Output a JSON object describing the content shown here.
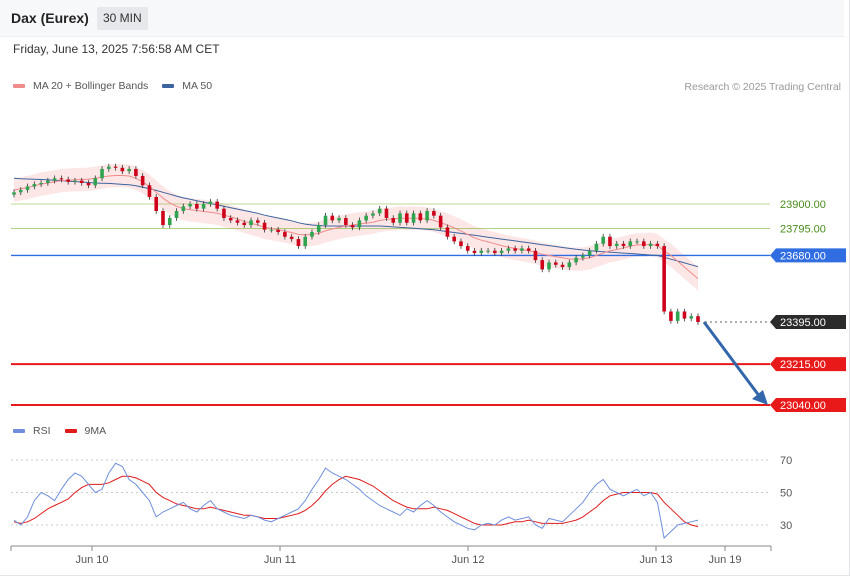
{
  "header": {
    "title": "Dax (Eurex)",
    "timeframe": "30 MIN",
    "datetime": "Friday, June 13, 2025 7:56:58 AM CET",
    "copyright": "Research © 2025 Trading Central"
  },
  "legend": {
    "price": [
      {
        "label": "MA 20 + Bollinger Bands",
        "color": "#f08c8c"
      },
      {
        "label": "MA 50",
        "color": "#3c64a0"
      }
    ],
    "rsi": [
      {
        "label": "RSI",
        "color": "#6f8fdc"
      },
      {
        "label": "9MA",
        "color": "#e01b1b"
      }
    ]
  },
  "chart_data": {
    "type": "candlestick",
    "x_ticks": [
      "Jun 10",
      "Jun 11",
      "Jun 12",
      "Jun 13",
      "Jun 19"
    ],
    "levels": [
      {
        "value": 23900.0,
        "label": "23900.00",
        "kind": "resistance-soft",
        "color": "#8fbf4e"
      },
      {
        "value": 23795.0,
        "label": "23795.00",
        "kind": "resistance-soft",
        "color": "#8fbf4e"
      },
      {
        "value": 23680.0,
        "label": "23680.00",
        "kind": "pivot",
        "color": "#2f6de1"
      },
      {
        "value": 23395.0,
        "label": "23395.00",
        "kind": "last-price",
        "color": "#2b2b2b"
      },
      {
        "value": 23215.0,
        "label": "23215.00",
        "kind": "support",
        "color": "#e81919"
      },
      {
        "value": 23040.0,
        "label": "23040.00",
        "kind": "support",
        "color": "#e81919"
      }
    ],
    "price_close": [
      23950,
      23960,
      23975,
      23985,
      23990,
      24000,
      24010,
      24005,
      23995,
      24000,
      23990,
      23980,
      24010,
      24050,
      24060,
      24055,
      24040,
      24050,
      24020,
      23980,
      23930,
      23870,
      23810,
      23840,
      23870,
      23890,
      23900,
      23880,
      23900,
      23910,
      23880,
      23840,
      23830,
      23820,
      23810,
      23830,
      23820,
      23790,
      23790,
      23780,
      23760,
      23750,
      23720,
      23760,
      23780,
      23810,
      23850,
      23830,
      23840,
      23810,
      23800,
      23830,
      23850,
      23860,
      23880,
      23840,
      23820,
      23860,
      23820,
      23860,
      23830,
      23870,
      23850,
      23800,
      23760,
      23740,
      23720,
      23700,
      23690,
      23700,
      23700,
      23690,
      23700,
      23710,
      23700,
      23710,
      23700,
      23660,
      23620,
      23650,
      23640,
      23630,
      23650,
      23670,
      23680,
      23700,
      23730,
      23760,
      23720,
      23730,
      23720,
      23740,
      23740,
      23720,
      23730,
      23720,
      23440,
      23400,
      23440,
      23410,
      23420,
      23395
    ],
    "ma20": [
      23960,
      23965,
      23970,
      23978,
      23985,
      23990,
      23995,
      24000,
      24002,
      24004,
      24005,
      24006,
      24010,
      24015,
      24020,
      24022,
      24022,
      24020,
      24010,
      23995,
      23975,
      23950,
      23925,
      23905,
      23890,
      23880,
      23875,
      23872,
      23868,
      23865,
      23860,
      23852,
      23845,
      23836,
      23826,
      23818,
      23810,
      23800,
      23795,
      23790,
      23784,
      23778,
      23770,
      23768,
      23770,
      23775,
      23785,
      23793,
      23800,
      23806,
      23810,
      23815,
      23818,
      23822,
      23830,
      23834,
      23836,
      23840,
      23838,
      23840,
      23838,
      23836,
      23830,
      23820,
      23810,
      23798,
      23785,
      23770,
      23755,
      23745,
      23738,
      23730,
      23722,
      23715,
      23710,
      23705,
      23700,
      23693,
      23685,
      23680,
      23674,
      23670,
      23665,
      23664,
      23665,
      23670,
      23680,
      23690,
      23700,
      23705,
      23712,
      23720,
      23725,
      23725,
      23728,
      23722,
      23700,
      23680,
      23655,
      23630,
      23605,
      23580
    ],
    "ma50": [
      24010,
      24008,
      24007,
      24006,
      24005,
      24003,
      24002,
      24000,
      23998,
      23996,
      23994,
      23992,
      23990,
      23989,
      23988,
      23986,
      23984,
      23982,
      23978,
      23972,
      23966,
      23958,
      23950,
      23942,
      23934,
      23926,
      23920,
      23914,
      23908,
      23902,
      23896,
      23890,
      23884,
      23878,
      23872,
      23866,
      23860,
      23852,
      23846,
      23840,
      23834,
      23828,
      23820,
      23814,
      23810,
      23808,
      23806,
      23806,
      23806,
      23806,
      23806,
      23806,
      23806,
      23806,
      23806,
      23804,
      23802,
      23800,
      23798,
      23796,
      23794,
      23792,
      23790,
      23786,
      23782,
      23778,
      23774,
      23770,
      23766,
      23762,
      23758,
      23754,
      23750,
      23746,
      23742,
      23738,
      23734,
      23730,
      23726,
      23722,
      23718,
      23714,
      23710,
      23706,
      23703,
      23700,
      23698,
      23696,
      23694,
      23692,
      23690,
      23688,
      23686,
      23684,
      23682,
      23680,
      23672,
      23664,
      23656,
      23648,
      23640,
      23632
    ],
    "bb_half_width": 50,
    "rsi": [
      33,
      30,
      35,
      45,
      50,
      48,
      45,
      52,
      58,
      62,
      60,
      55,
      50,
      52,
      62,
      68,
      66,
      58,
      55,
      50,
      45,
      35,
      38,
      40,
      42,
      44,
      40,
      38,
      42,
      45,
      40,
      38,
      36,
      35,
      34,
      36,
      35,
      33,
      32,
      34,
      36,
      38,
      40,
      45,
      52,
      58,
      65,
      62,
      60,
      58,
      55,
      52,
      48,
      45,
      42,
      40,
      38,
      36,
      40,
      38,
      42,
      45,
      42,
      38,
      35,
      32,
      30,
      28,
      27,
      30,
      31,
      30,
      33,
      35,
      33,
      34,
      35,
      30,
      28,
      34,
      33,
      32,
      36,
      40,
      44,
      50,
      55,
      58,
      52,
      50,
      48,
      50,
      52,
      48,
      50,
      44,
      22,
      26,
      30,
      31,
      32,
      33
    ],
    "rsi_ma": [
      32,
      31,
      32,
      34,
      37,
      40,
      42,
      44,
      46,
      50,
      53,
      55,
      55,
      55,
      56,
      58,
      60,
      60,
      59,
      57,
      55,
      50,
      47,
      45,
      43,
      42,
      41,
      40,
      40,
      41,
      40,
      39,
      38,
      37,
      36,
      36,
      35,
      34,
      34,
      34,
      35,
      36,
      37,
      39,
      42,
      46,
      51,
      55,
      58,
      60,
      59,
      58,
      56,
      54,
      51,
      48,
      45,
      43,
      41,
      40,
      40,
      40,
      41,
      40,
      39,
      37,
      35,
      33,
      31,
      30,
      30,
      30,
      30,
      31,
      32,
      32,
      33,
      32,
      31,
      31,
      31,
      31,
      32,
      33,
      35,
      38,
      41,
      45,
      48,
      49,
      50,
      50,
      50,
      50,
      50,
      49,
      44,
      40,
      36,
      32,
      30,
      29
    ],
    "rsi_ticks": [
      70,
      50,
      30
    ],
    "arrow": {
      "from": 23395,
      "to": 23040,
      "color": "#3366aa"
    }
  }
}
